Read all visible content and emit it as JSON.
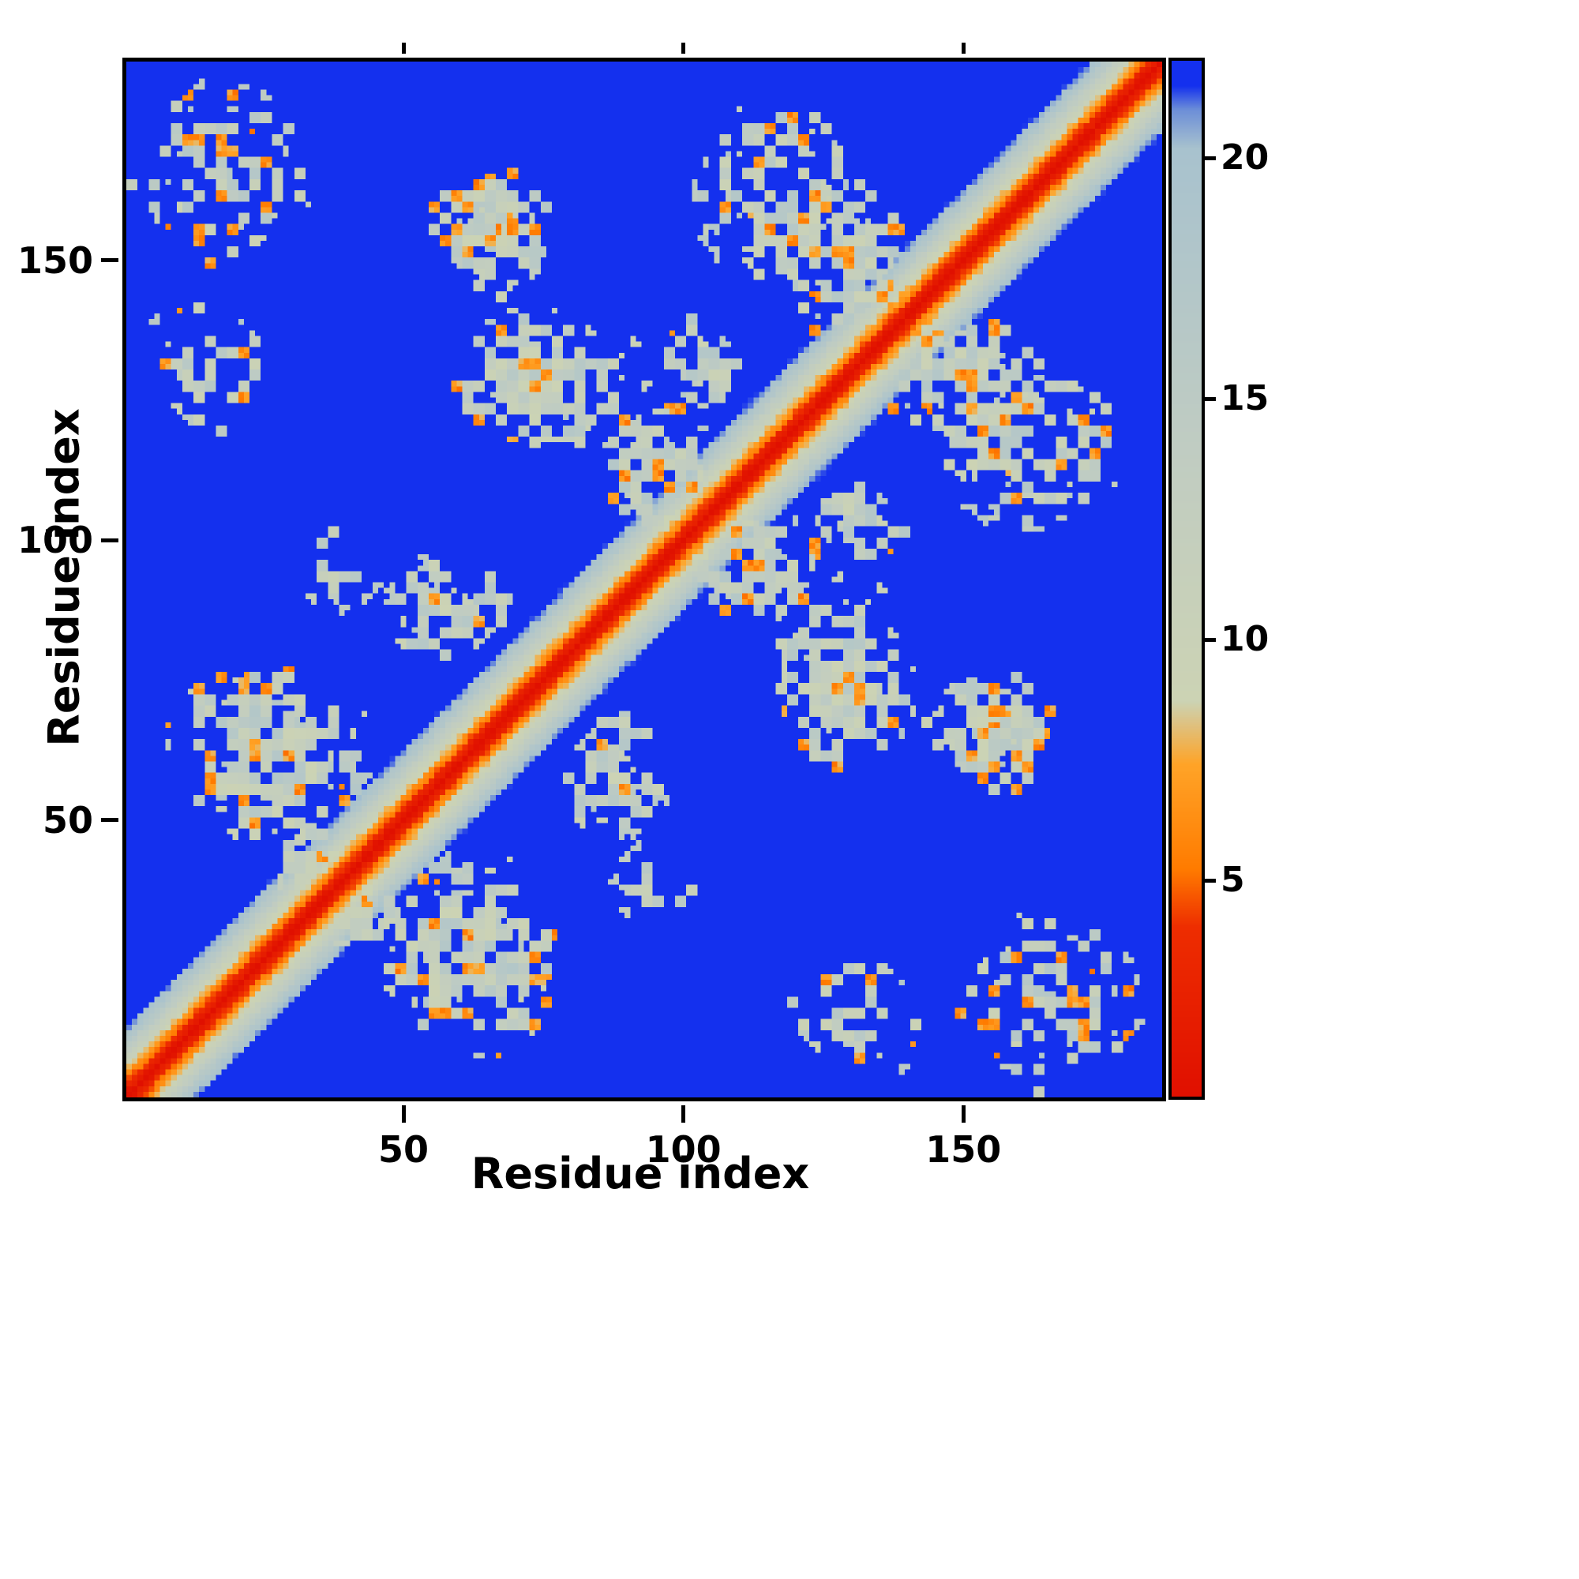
{
  "figure": {
    "background_color": "#ffffff"
  },
  "chart_data": {
    "type": "heatmap",
    "title": "",
    "xlabel": "Residue index",
    "ylabel": "Residue index",
    "n_residues": 185,
    "axis_range": [
      1,
      185
    ],
    "x_ticks": [
      50,
      100,
      150
    ],
    "y_ticks": [
      50,
      100,
      150
    ],
    "grid": false,
    "legend_position": "none",
    "colorbar": {
      "side": "right",
      "ticks": [
        5,
        10,
        15,
        20
      ],
      "vmin": 0.5,
      "vmax": 22
    },
    "background_value_color": "#1430ee",
    "colormap": {
      "description": "distance map: red=close, orange, pale gray-green, deep blue=far",
      "stops": [
        {
          "v": 0.5,
          "color": "#e01000"
        },
        {
          "v": 4.0,
          "color": "#ee2d00"
        },
        {
          "v": 5.2,
          "color": "#ff7b00"
        },
        {
          "v": 7.4,
          "color": "#ffa428"
        },
        {
          "v": 8.7,
          "color": "#ccd3b4"
        },
        {
          "v": 14.0,
          "color": "#c0ccc2"
        },
        {
          "v": 20.2,
          "color": "#a8c2ce"
        },
        {
          "v": 21.0,
          "color": "#6d8fd8"
        },
        {
          "v": 21.5,
          "color": "#1430ee"
        },
        {
          "v": 22.0,
          "color": "#1430ee"
        }
      ]
    },
    "diagonal": {
      "slope_per_residue": 1.7,
      "noise": 1.5
    },
    "contact_clusters": [
      {
        "x": 18,
        "y": 166,
        "rx": 16,
        "ry": 16,
        "density": 0.5,
        "orange": 0.15
      },
      {
        "x": 14,
        "y": 131,
        "rx": 11,
        "ry": 12,
        "density": 0.38,
        "orange": 0.1
      },
      {
        "x": 26,
        "y": 62,
        "rx": 18,
        "ry": 16,
        "density": 0.72,
        "orange": 0.14
      },
      {
        "x": 58,
        "y": 88,
        "rx": 11,
        "ry": 10,
        "density": 0.65,
        "orange": 0.12
      },
      {
        "x": 63,
        "y": 156,
        "rx": 9,
        "ry": 9,
        "density": 0.75,
        "orange": 0.18
      },
      {
        "x": 75,
        "y": 128,
        "rx": 19,
        "ry": 13,
        "density": 0.72,
        "orange": 0.15
      },
      {
        "x": 112,
        "y": 95,
        "rx": 12,
        "ry": 9,
        "density": 0.7,
        "orange": 0.16
      },
      {
        "x": 117,
        "y": 162,
        "rx": 17,
        "ry": 15,
        "density": 0.6,
        "orange": 0.14
      },
      {
        "x": 148,
        "y": 130,
        "rx": 13,
        "ry": 11,
        "density": 0.68,
        "orange": 0.13
      },
      {
        "x": 155,
        "y": 68,
        "rx": 12,
        "ry": 9,
        "density": 0.72,
        "orange": 0.22
      },
      {
        "x": 130,
        "y": 103,
        "rx": 10,
        "ry": 8,
        "density": 0.45,
        "orange": 0.12
      },
      {
        "x": 40,
        "y": 33,
        "rx": 9,
        "ry": 7,
        "density": 0.55,
        "orange": 0.12
      },
      {
        "x": 95,
        "y": 38,
        "rx": 9,
        "ry": 8,
        "density": 0.4,
        "orange": 0.1
      }
    ]
  }
}
